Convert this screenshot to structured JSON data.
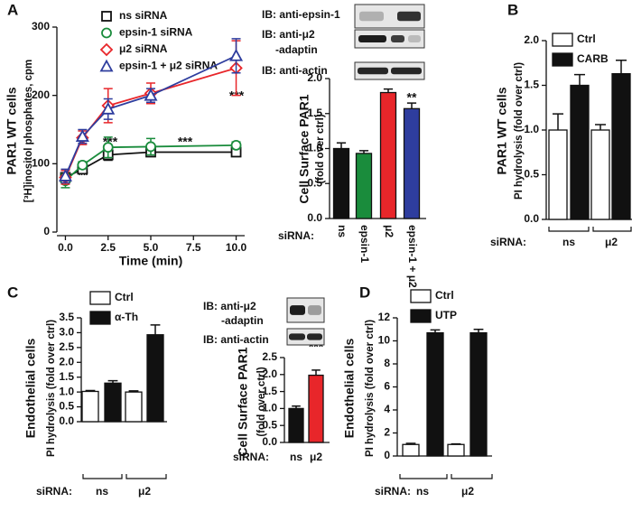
{
  "chart_data": [
    {
      "type": "line",
      "panel": "A",
      "title": "PAR1 WT cells",
      "ylabel": "[³H]inositol phosphates, cpm",
      "xlabel": "Time (min)",
      "x": [
        0,
        1,
        2.5,
        5,
        10
      ],
      "xlim": [
        -0.5,
        10.5
      ],
      "xticks": [
        {
          "value": 0,
          "label": "0.0"
        },
        2.5,
        {
          "value": 5,
          "label": "5.0"
        },
        7.5,
        {
          "value": 10,
          "label": "10.0"
        }
      ],
      "ylim": [
        0,
        300
      ],
      "yticks": [
        0,
        100,
        200,
        300
      ],
      "series": [
        {
          "name": "ns siRNA",
          "color": "#111111",
          "marker": "square",
          "values": [
            80,
            92,
            113,
            117,
            117
          ],
          "errors": [
            5,
            6,
            8,
            6,
            6
          ]
        },
        {
          "name": "epsin-1 siRNA",
          "color": "#1a8c3c",
          "marker": "circle",
          "values": [
            75,
            98,
            124,
            125,
            127
          ],
          "errors": [
            10,
            5,
            15,
            12,
            5
          ]
        },
        {
          "name": "μ2 siRNA",
          "color": "#e8262a",
          "marker": "diamond",
          "values": [
            80,
            138,
            185,
            203,
            240
          ],
          "errors": [
            10,
            10,
            25,
            15,
            40
          ]
        },
        {
          "name": "epsin-1 + μ2 siRNA",
          "color": "#2e3d9e",
          "marker": "triangle",
          "values": [
            82,
            140,
            180,
            200,
            258
          ],
          "errors": [
            10,
            10,
            15,
            10,
            25
          ]
        }
      ],
      "annotations": [
        "**",
        "***",
        "***",
        "***"
      ]
    },
    {
      "type": "bar",
      "title": "Cell Surface PAR1",
      "ylabel": "(fold over ctrl)",
      "xlabel": "siRNA:",
      "categories": [
        "ns",
        "epsin-1",
        "μ2",
        "epsin-1 + μ2"
      ],
      "values": [
        1.0,
        0.93,
        1.8,
        1.57
      ],
      "errors": [
        0.08,
        0.04,
        0.05,
        0.08
      ],
      "colors": [
        "#111111",
        "#1a8c3c",
        "#e8262a",
        "#2e3d9e"
      ],
      "ylim": [
        0,
        2
      ],
      "yticks": [
        {
          "value": 0,
          "label": "0.0"
        },
        0.5,
        {
          "value": 1,
          "label": "1.0"
        },
        1.5,
        {
          "value": 2,
          "label": "2.0"
        }
      ],
      "annotations": [
        "**",
        "**"
      ],
      "blots": [
        [
          "IB: anti-epsin-1"
        ],
        [
          "IB: anti-μ2",
          "-adaptin"
        ],
        [
          "IB: anti-actin"
        ]
      ]
    },
    {
      "type": "bar",
      "panel": "B",
      "title": "PAR1 WT cells",
      "ylabel": "PI hydrolysis (fold over ctrl)",
      "xlabel": "siRNA:",
      "categories": [
        "ns",
        "μ2"
      ],
      "series": [
        {
          "name": "Ctrl",
          "color": "#ffffff",
          "values": [
            1.0,
            1.0
          ],
          "errors": [
            0.18,
            0.06
          ]
        },
        {
          "name": "CARB",
          "color": "#111111",
          "values": [
            1.5,
            1.63
          ],
          "errors": [
            0.12,
            0.15
          ]
        }
      ],
      "ylim": [
        0,
        2
      ],
      "yticks": [
        {
          "value": 0,
          "label": "0.0"
        },
        0.5,
        {
          "value": 1,
          "label": "1.0"
        },
        1.5,
        {
          "value": 2,
          "label": "2.0"
        }
      ]
    },
    {
      "type": "bar",
      "panel": "C",
      "title": "Endothelial cells",
      "ylabel": "PI hydrolysis (fold over ctrl)",
      "xlabel": "siRNA:",
      "categories": [
        "ns",
        "μ2"
      ],
      "series": [
        {
          "name": "Ctrl",
          "color": "#ffffff",
          "values": [
            1.02,
            1.0
          ],
          "errors": [
            0.03,
            0.04
          ]
        },
        {
          "name": "α-Th",
          "color": "#111111",
          "values": [
            1.3,
            2.93
          ],
          "errors": [
            0.08,
            0.33
          ]
        }
      ],
      "ylim": [
        0,
        3.5
      ],
      "yticks": [
        {
          "value": 0,
          "label": "0.0"
        },
        0.5,
        {
          "value": 1,
          "label": "1.0"
        },
        1.5,
        {
          "value": 2,
          "label": "2.0"
        },
        2.5,
        {
          "value": 3,
          "label": "3.0"
        },
        3.5
      ],
      "annotations": [
        "**"
      ]
    },
    {
      "type": "bar",
      "title": "Cell Surface PAR1",
      "ylabel": "(fold over ctrl)",
      "xlabel": "siRNA:",
      "categories": [
        "ns",
        "μ2"
      ],
      "values": [
        1.0,
        1.98
      ],
      "errors": [
        0.07,
        0.15
      ],
      "colors": [
        "#111111",
        "#e8262a"
      ],
      "ylim": [
        0,
        2.5
      ],
      "yticks": [
        {
          "value": 0,
          "label": "0.0"
        },
        0.5,
        {
          "value": 1,
          "label": "1.0"
        },
        1.5,
        {
          "value": 2,
          "label": "2.0"
        },
        2.5
      ],
      "annotations": [
        "***"
      ],
      "blots": [
        [
          "IB: anti-μ2",
          "-adaptin"
        ],
        [
          "IB: anti-actin"
        ]
      ]
    },
    {
      "type": "bar",
      "panel": "D",
      "title": "Endothelial cells",
      "ylabel": "PI hydrolysis (fold over ctrl)",
      "xlabel": "siRNA:",
      "categories": [
        "ns",
        "μ2"
      ],
      "series": [
        {
          "name": "Ctrl",
          "color": "#ffffff",
          "values": [
            1.0,
            1.0
          ],
          "errors": [
            0.1,
            0.05
          ]
        },
        {
          "name": "UTP",
          "color": "#111111",
          "values": [
            10.7,
            10.7
          ],
          "errors": [
            0.25,
            0.3
          ]
        }
      ],
      "ylim": [
        0,
        12
      ],
      "yticks": [
        0,
        2,
        4,
        6,
        8,
        10,
        12
      ]
    }
  ]
}
